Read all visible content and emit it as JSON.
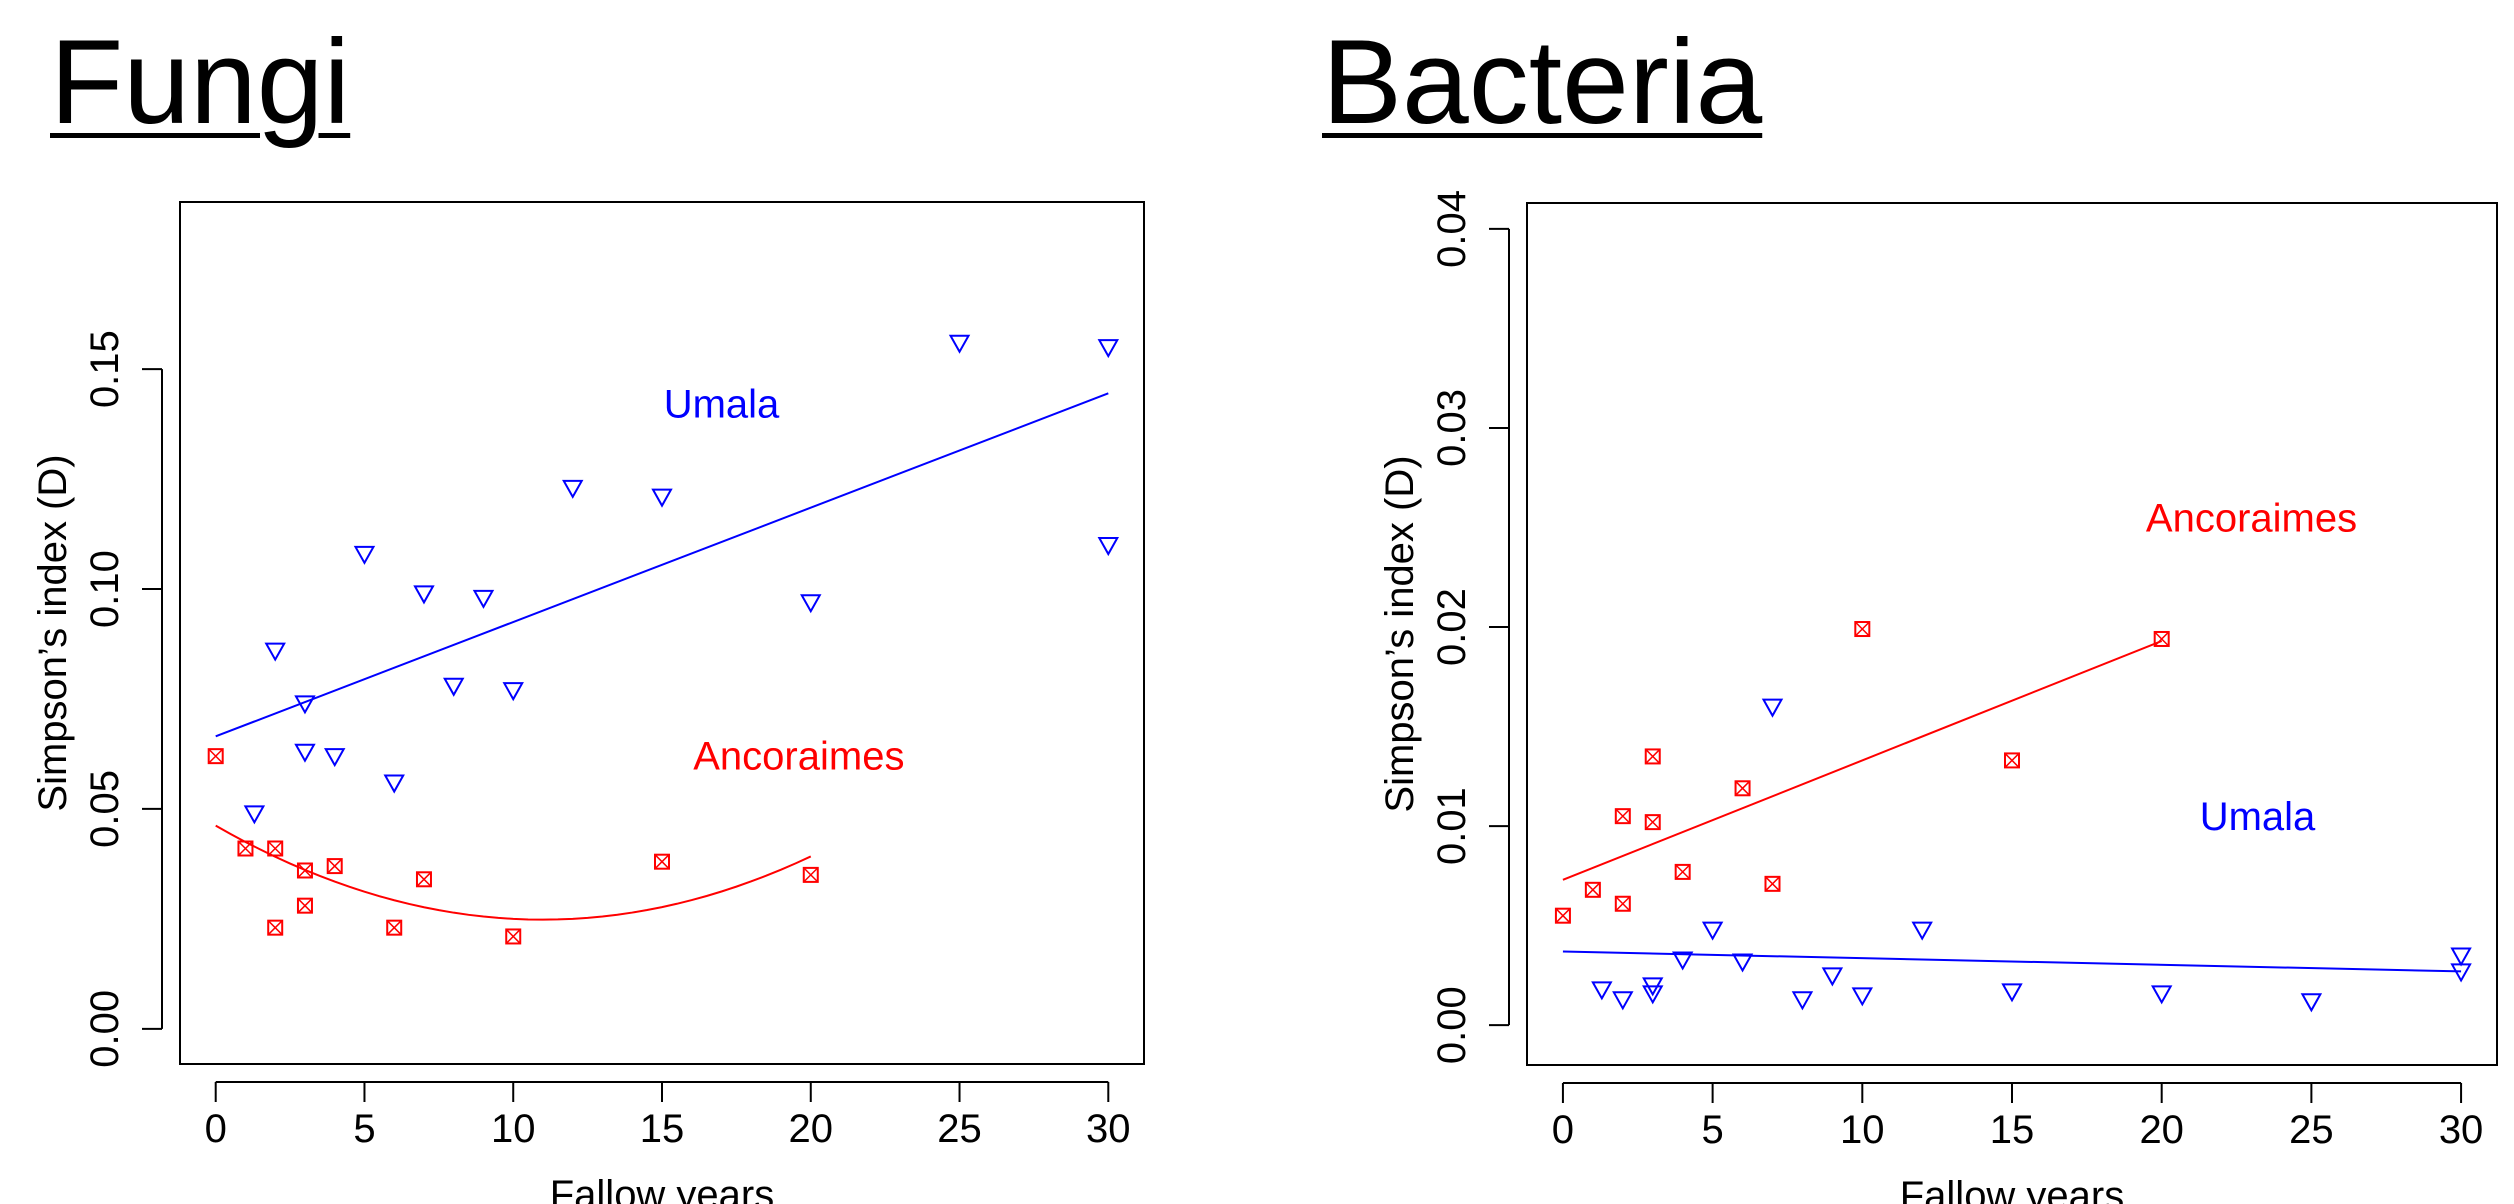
{
  "chart_data": [
    {
      "type": "scatter",
      "title": "Fungi",
      "xlabel": "Fallow years",
      "ylabel": "Simpson’s index (D)",
      "xlim": [
        -1.2,
        31.2
      ],
      "ylim": [
        -0.008,
        0.188
      ],
      "xticks": [
        0,
        5,
        10,
        15,
        20,
        25,
        30
      ],
      "yticks": [
        0.0,
        0.05,
        0.1,
        0.15
      ],
      "ytick_labels": [
        "0.00",
        "0.05",
        "0.10",
        "0.15"
      ],
      "grid": false,
      "annotations": [
        {
          "text": "Umala",
          "x": 17,
          "y": 0.139,
          "color": "#0000ff"
        },
        {
          "text": "Ancoraimes",
          "x": 19.6,
          "y": 0.059,
          "color": "#ff0000"
        }
      ],
      "series": [
        {
          "label": "Umala",
          "color": "#0000ff",
          "marker": "triangle-down",
          "points": [
            [
              1.3,
              0.049
            ],
            [
              2,
              0.086
            ],
            [
              3,
              0.074
            ],
            [
              3,
              0.063
            ],
            [
              4,
              0.062
            ],
            [
              5,
              0.108
            ],
            [
              6,
              0.056
            ],
            [
              7,
              0.099
            ],
            [
              8,
              0.078
            ],
            [
              9,
              0.098
            ],
            [
              10,
              0.077
            ],
            [
              12,
              0.123
            ],
            [
              15,
              0.121
            ],
            [
              20,
              0.097
            ],
            [
              25,
              0.156
            ],
            [
              30,
              0.155
            ],
            [
              30,
              0.11
            ]
          ],
          "fit": {
            "kind": "linear",
            "x_range": [
              0,
              30
            ],
            "y_start": 0.0665,
            "y_end": 0.1445
          }
        },
        {
          "label": "Ancoraimes",
          "color": "#ff0000",
          "marker": "boxed-x",
          "points": [
            [
              0,
              0.062
            ],
            [
              1,
              0.041
            ],
            [
              2,
              0.041
            ],
            [
              2,
              0.023
            ],
            [
              3,
              0.036
            ],
            [
              3,
              0.028
            ],
            [
              4,
              0.037
            ],
            [
              6,
              0.023
            ],
            [
              7,
              0.034
            ],
            [
              10,
              0.021
            ],
            [
              15,
              0.038
            ],
            [
              20,
              0.035
            ]
          ],
          "fit": {
            "kind": "quadratic",
            "x_range": [
              0,
              20
            ],
            "coefficients": [
              0.0462,
              -0.00389,
              0.000177
            ]
          }
        }
      ]
    },
    {
      "type": "scatter",
      "title": "Bacteria",
      "xlabel": "Fallow years",
      "ylabel": "Simpson’s index (D)",
      "xlim": [
        -1.2,
        31.2
      ],
      "ylim": [
        -0.002,
        0.0413
      ],
      "xticks": [
        0,
        5,
        10,
        15,
        20,
        25,
        30
      ],
      "yticks": [
        0.0,
        0.01,
        0.02,
        0.03,
        0.04
      ],
      "ytick_labels": [
        "0.00",
        "0.01",
        "0.02",
        "0.03",
        "0.04"
      ],
      "grid": false,
      "annotations": [
        {
          "text": "Ancoraimes",
          "x": 23,
          "y": 0.0248,
          "color": "#ff0000"
        },
        {
          "text": "Umala",
          "x": 23.2,
          "y": 0.0098,
          "color": "#0000ff"
        }
      ],
      "series": [
        {
          "label": "Ancoraimes",
          "color": "#ff0000",
          "marker": "boxed-x",
          "points": [
            [
              0,
              0.0055
            ],
            [
              1,
              0.0068
            ],
            [
              2,
              0.0061
            ],
            [
              2,
              0.0105
            ],
            [
              3,
              0.0102
            ],
            [
              3,
              0.0135
            ],
            [
              4,
              0.0077
            ],
            [
              6,
              0.0119
            ],
            [
              7,
              0.0071
            ],
            [
              10,
              0.0199
            ],
            [
              15,
              0.0133
            ],
            [
              20,
              0.0194
            ]
          ],
          "fit": {
            "kind": "linear",
            "x_range": [
              0,
              20
            ],
            "y_start": 0.0073,
            "y_end": 0.0193
          }
        },
        {
          "label": "Umala",
          "color": "#0000ff",
          "marker": "triangle-down",
          "points": [
            [
              1.3,
              0.0018
            ],
            [
              2,
              0.0013
            ],
            [
              3,
              0.002
            ],
            [
              3,
              0.0016
            ],
            [
              4,
              0.0033
            ],
            [
              5,
              0.0048
            ],
            [
              6,
              0.0032
            ],
            [
              7,
              0.016
            ],
            [
              8,
              0.0013
            ],
            [
              9,
              0.0025
            ],
            [
              10,
              0.0015
            ],
            [
              12,
              0.0048
            ],
            [
              15,
              0.0017
            ],
            [
              20,
              0.0016
            ],
            [
              25,
              0.0012
            ],
            [
              30,
              0.0035
            ],
            [
              30,
              0.0027
            ]
          ],
          "fit": {
            "kind": "linear",
            "x_range": [
              0,
              30
            ],
            "y_start": 0.0037,
            "y_end": 0.0027
          }
        }
      ]
    }
  ]
}
